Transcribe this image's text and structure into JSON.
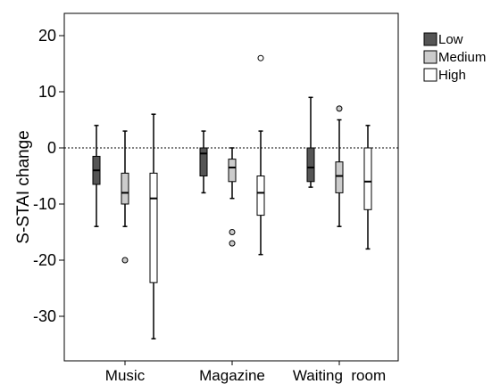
{
  "chart_data": {
    "type": "boxplot",
    "title": "",
    "xlabel": "",
    "ylabel": "S-STAI change",
    "ylim": [
      -38,
      24
    ],
    "yticks": [
      20,
      10,
      0,
      -10,
      -20,
      -30
    ],
    "categories": [
      "Music",
      "Magazine",
      "Waiting  room"
    ],
    "reference_line": 0,
    "legend_position": "right",
    "colors": {
      "Low": "#555555",
      "Medium": "#cccccc",
      "High": "#ffffff"
    },
    "series": [
      {
        "name": "Low",
        "boxes": [
          {
            "min": -14,
            "q1": -6.5,
            "median": -4,
            "q3": -1.5,
            "max": 4,
            "outliers": []
          },
          {
            "min": -8,
            "q1": -5,
            "median": -1,
            "q3": 0,
            "max": 3,
            "outliers": []
          },
          {
            "min": -7,
            "q1": -6,
            "median": -3.5,
            "q3": 0,
            "max": 9,
            "outliers": []
          }
        ]
      },
      {
        "name": "Medium",
        "boxes": [
          {
            "min": -14,
            "q1": -10,
            "median": -8,
            "q3": -4.5,
            "max": 3,
            "outliers": [
              -20
            ]
          },
          {
            "min": -9,
            "q1": -6,
            "median": -3.5,
            "q3": -2,
            "max": 0,
            "outliers": [
              -15,
              -17
            ]
          },
          {
            "min": -14,
            "q1": -8,
            "median": -5,
            "q3": -2.5,
            "max": 5,
            "outliers": [
              7
            ]
          }
        ]
      },
      {
        "name": "High",
        "boxes": [
          {
            "min": -34,
            "q1": -24,
            "median": -9,
            "q3": -4.5,
            "max": 6,
            "outliers": []
          },
          {
            "min": -19,
            "q1": -12,
            "median": -8,
            "q3": -5,
            "max": 3,
            "outliers": [
              16
            ]
          },
          {
            "min": -18,
            "q1": -11,
            "median": -6,
            "q3": 0,
            "max": 4,
            "outliers": []
          }
        ]
      }
    ]
  }
}
